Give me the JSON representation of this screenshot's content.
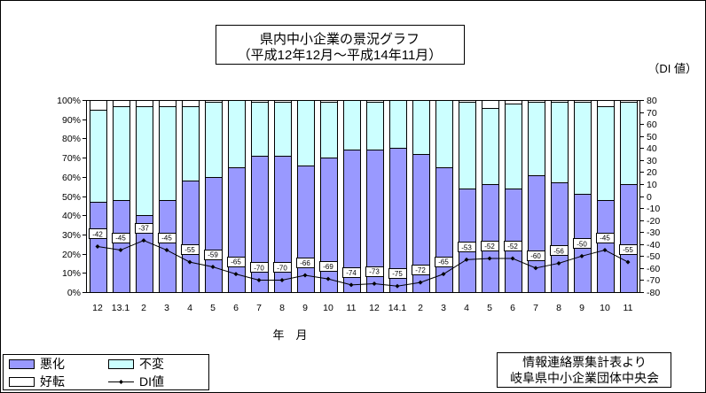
{
  "chart_data": {
    "type": "bar",
    "stacked": "percent",
    "title": "県内中小企業の景況グラフ",
    "subtitle": "（平成12年12月～平成14年11月）",
    "xlabel": "年　月",
    "ylabel_right": "（DI 値）",
    "categories": [
      "12",
      "13.1",
      "2",
      "3",
      "4",
      "5",
      "6",
      "7",
      "8",
      "9",
      "10",
      "11",
      "12",
      "14.1",
      "2",
      "3",
      "4",
      "5",
      "6",
      "7",
      "8",
      "9",
      "10",
      "11"
    ],
    "ylim_left": [
      0,
      100
    ],
    "yticks_left": [
      "0%",
      "10%",
      "20%",
      "30%",
      "40%",
      "50%",
      "60%",
      "70%",
      "80%",
      "90%",
      "100%"
    ],
    "ylim_right": [
      -80,
      80
    ],
    "yticks_right": [
      "-80",
      "-70",
      "-60",
      "-50",
      "-40",
      "-30",
      "-20",
      "-10",
      "0",
      "10",
      "20",
      "30",
      "40",
      "50",
      "60",
      "70",
      "80"
    ],
    "series": [
      {
        "name": "悪化",
        "type": "bar",
        "axis": "left",
        "color": "#9999ff",
        "values": [
          47,
          48,
          40,
          48,
          58,
          60,
          65,
          71,
          71,
          66,
          70,
          74,
          74,
          75,
          72,
          65,
          54,
          56,
          54,
          61,
          57,
          51,
          48,
          56
        ]
      },
      {
        "name": "不変",
        "type": "bar",
        "axis": "left",
        "color": "#ccffff",
        "values": [
          48,
          49,
          57,
          49,
          39,
          39,
          35,
          28,
          28,
          34,
          29,
          26,
          25,
          25,
          28,
          35,
          45,
          40,
          44,
          38,
          42,
          48,
          49,
          43
        ]
      },
      {
        "name": "好転",
        "type": "bar",
        "axis": "left",
        "color": "#ffffff",
        "values": [
          5,
          3,
          3,
          3,
          3,
          1,
          0,
          1,
          1,
          0,
          1,
          0,
          1,
          0,
          0,
          0,
          1,
          4,
          2,
          1,
          1,
          1,
          3,
          1
        ]
      },
      {
        "name": "DI値",
        "type": "line",
        "axis": "right",
        "color": "#000000",
        "marker": "diamond",
        "data_labels": true,
        "values": [
          -42,
          -45,
          -37,
          -45,
          -55,
          -59,
          -65,
          -70,
          -70,
          -66,
          -69,
          -74,
          -73,
          -75,
          -72,
          -65,
          -53,
          -52,
          -52,
          -60,
          -56,
          -50,
          -45,
          -55
        ]
      }
    ],
    "grid": false,
    "legend": "bottom-left",
    "source": [
      "情報連絡票集計表より",
      "岐阜県中小企業団体中央会"
    ]
  }
}
